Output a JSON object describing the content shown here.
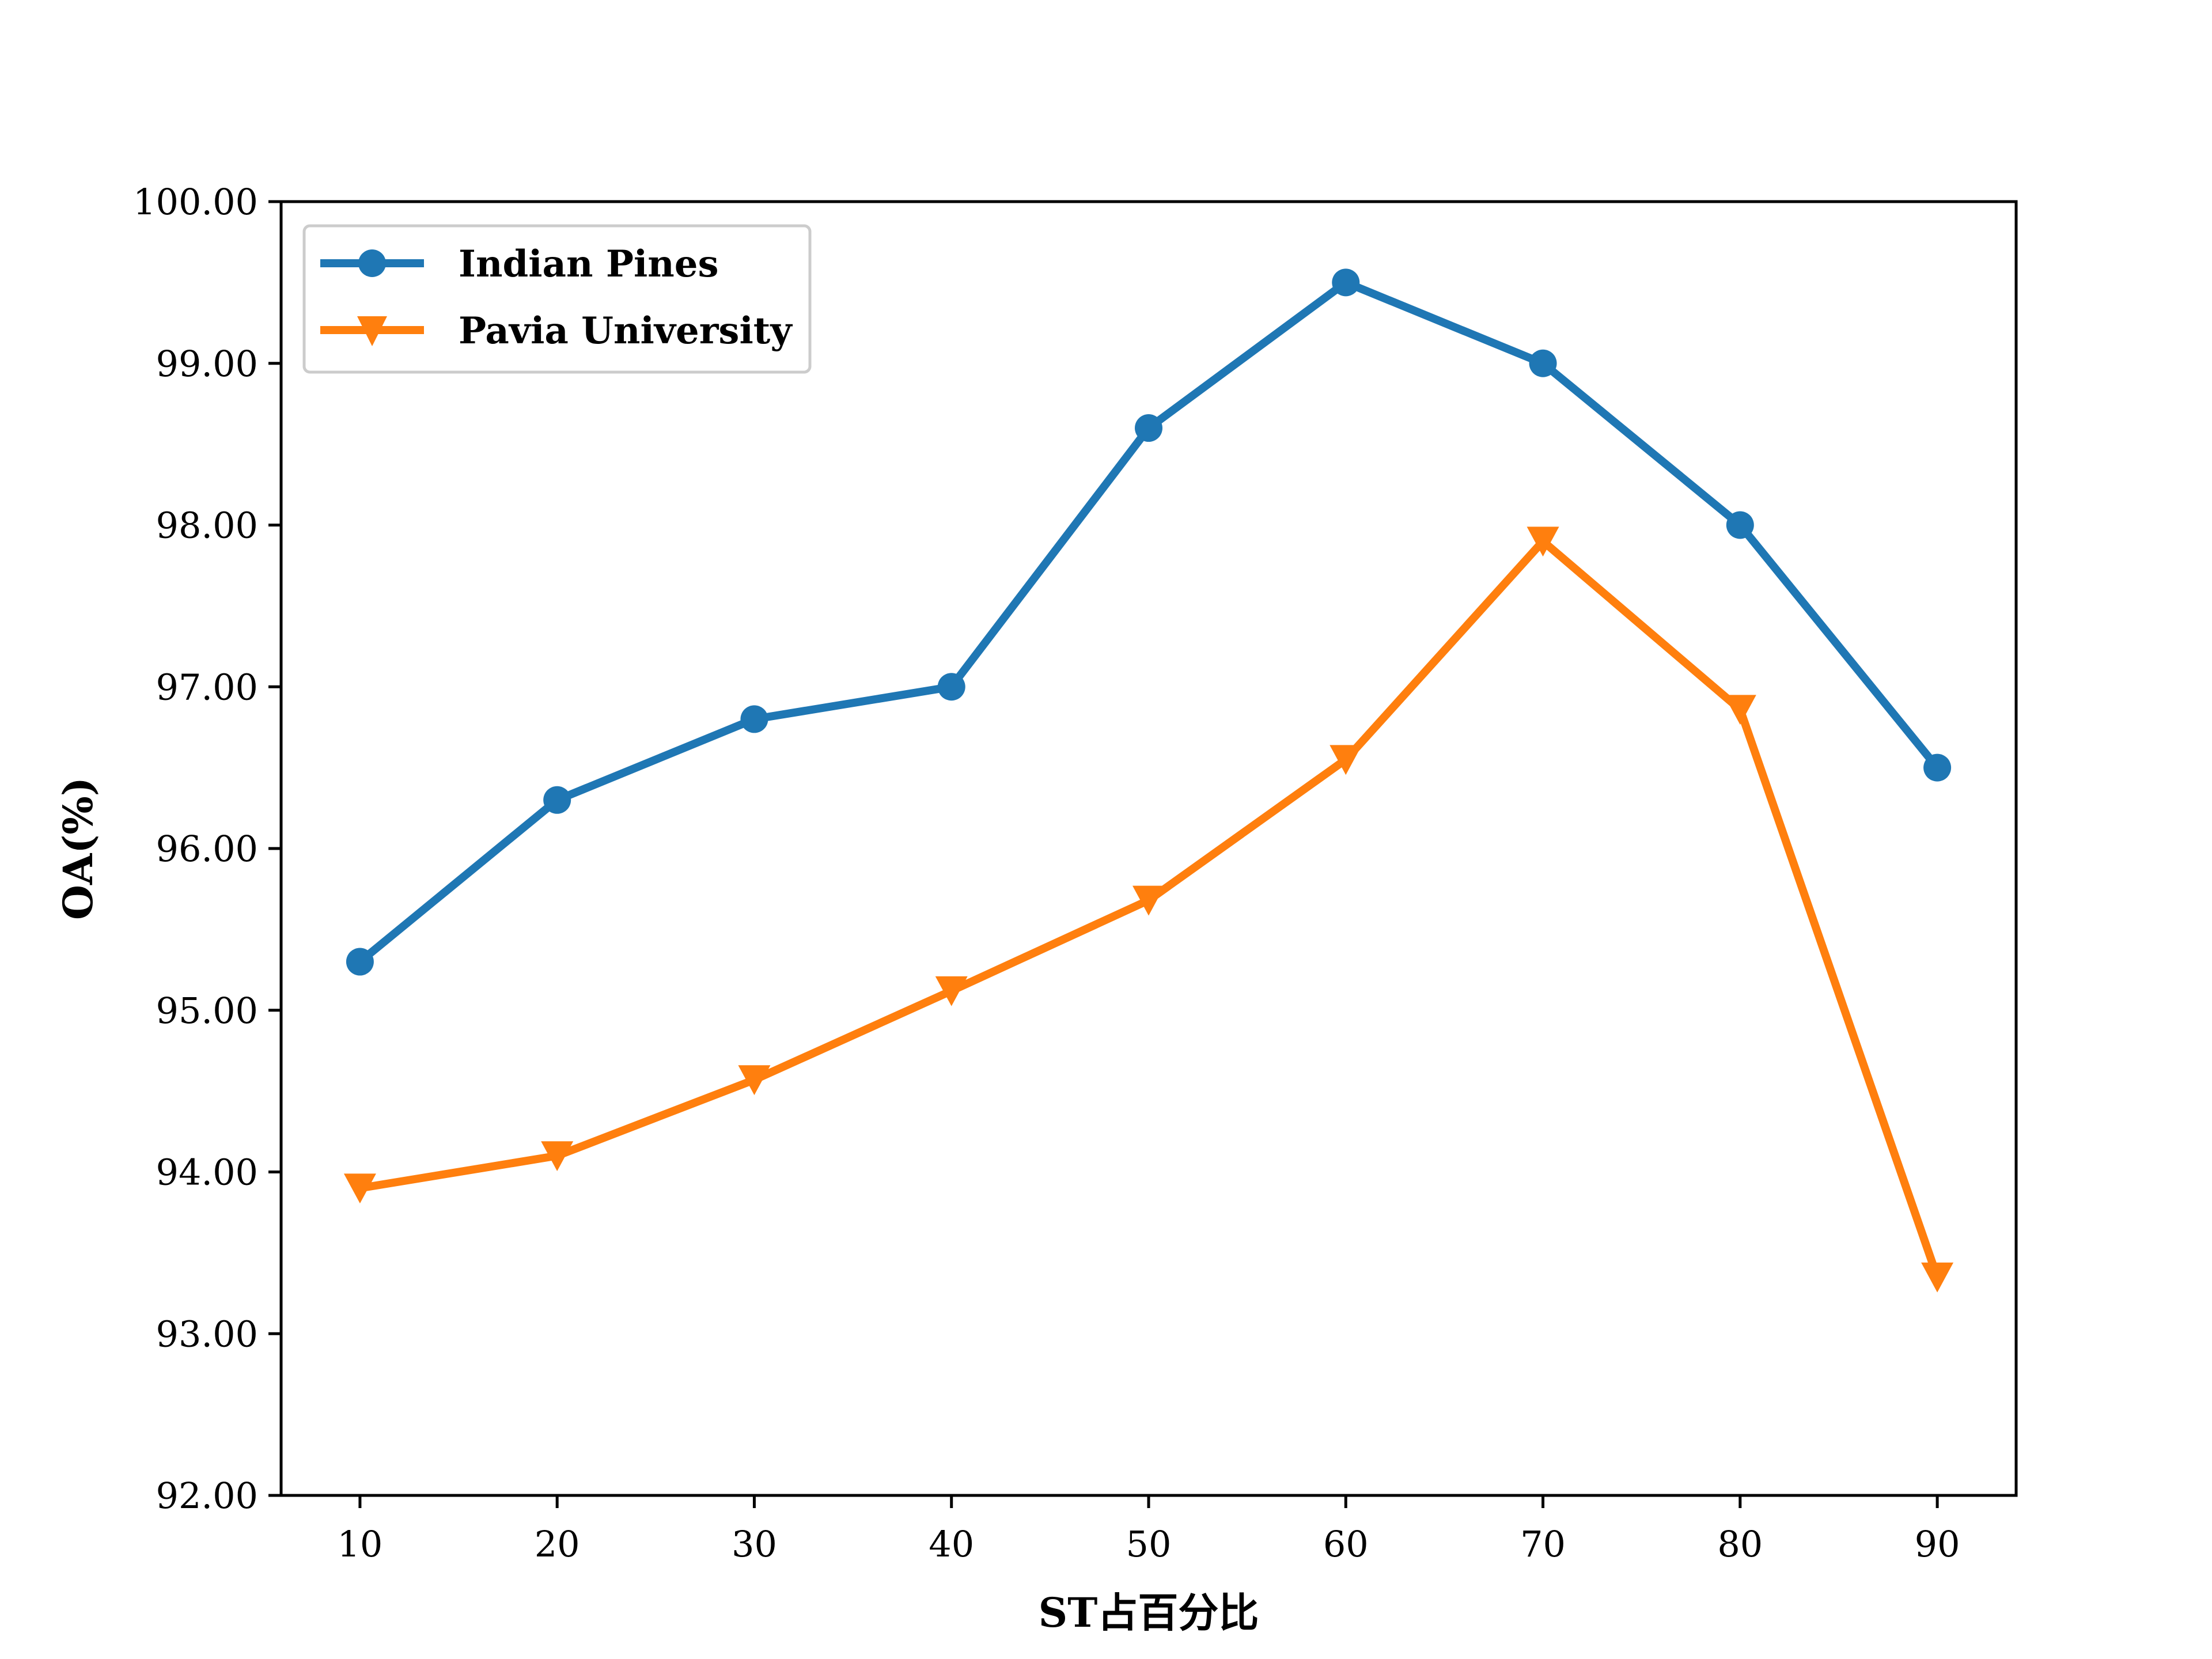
{
  "chart_data": {
    "type": "line",
    "x": [
      10,
      20,
      30,
      40,
      50,
      60,
      70,
      80,
      90
    ],
    "xticks": [
      "10",
      "20",
      "30",
      "40",
      "50",
      "60",
      "70",
      "80",
      "90"
    ],
    "xlim": [
      6,
      94
    ],
    "ylim": [
      92.0,
      100.0
    ],
    "yticks": [
      "92.00",
      "93.00",
      "94.00",
      "95.00",
      "96.00",
      "97.00",
      "98.00",
      "99.00",
      "100.00"
    ],
    "xlabel": "ST占百分比",
    "ylabel": "OA(%)",
    "legend": "top-left",
    "grid": false,
    "series": [
      {
        "name": "Indian Pines",
        "color": "#1f77b4",
        "marker": "circle",
        "values": [
          95.3,
          96.3,
          96.8,
          97.0,
          98.6,
          99.5,
          99.0,
          98.0,
          96.5
        ]
      },
      {
        "name": "Pavia University",
        "color": "#ff7f0e",
        "marker": "triangle-down",
        "values": [
          93.9,
          94.1,
          94.57,
          95.12,
          95.68,
          96.55,
          97.9,
          96.86,
          93.35
        ]
      }
    ]
  }
}
